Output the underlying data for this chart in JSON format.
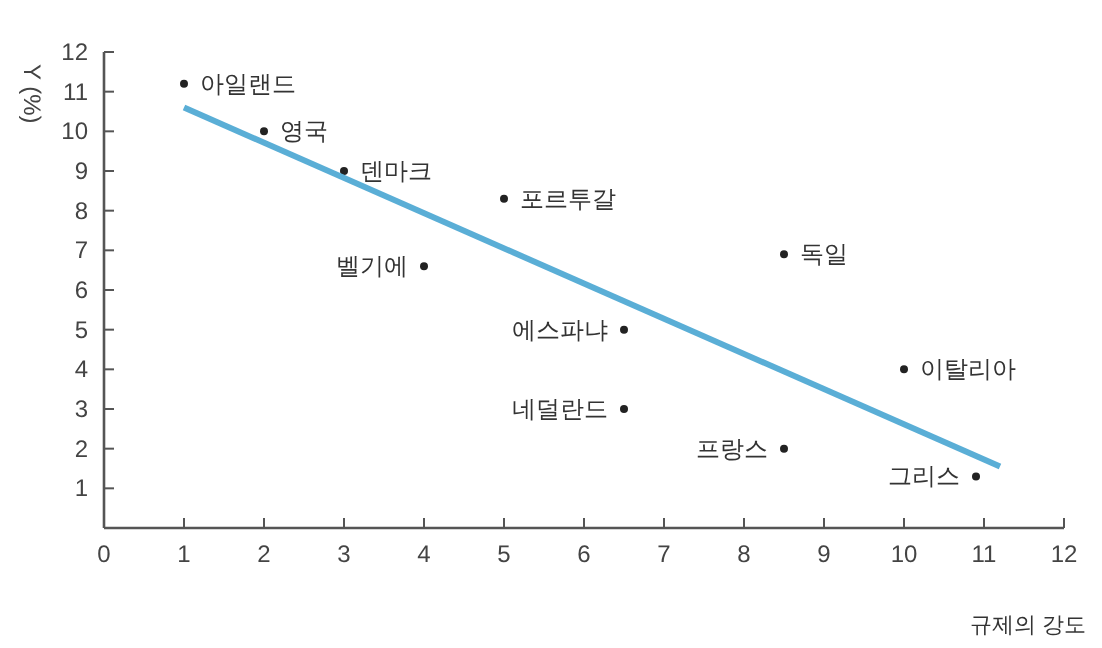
{
  "chart_data": {
    "type": "scatter",
    "xlabel": "규제의 강도",
    "ylabel": "Y (%)",
    "xlim": [
      0,
      12
    ],
    "ylim": [
      0,
      12
    ],
    "xticks": [
      0,
      1,
      2,
      3,
      4,
      5,
      6,
      7,
      8,
      9,
      10,
      11,
      12
    ],
    "yticks": [
      1,
      2,
      3,
      4,
      5,
      6,
      7,
      8,
      9,
      10,
      11,
      12
    ],
    "grid": false,
    "series": [
      {
        "marker": "circle",
        "color": "#222222",
        "x": [
          1,
          2,
          3,
          5,
          4,
          6.5,
          6.5,
          8.5,
          10,
          8.5,
          10.9
        ],
        "values": [
          11.2,
          10,
          9,
          8.3,
          6.6,
          5,
          3,
          6.9,
          4,
          2,
          1.3
        ]
      },
      {
        "type": "line",
        "color": "#5aaed6",
        "x": [
          1,
          11.2
        ],
        "values": [
          10.6,
          1.55
        ]
      }
    ],
    "annotations": [
      {
        "text": "아일랜드",
        "x": 1,
        "y": 11.2
      },
      {
        "text": "영국",
        "x": 2,
        "y": 10
      },
      {
        "text": "덴마크",
        "x": 3,
        "y": 9
      },
      {
        "text": "포르투갈",
        "x": 5,
        "y": 8.3
      },
      {
        "text": "벨기에",
        "x": 4,
        "y": 6.6
      },
      {
        "text": "에스파냐",
        "x": 6.5,
        "y": 5
      },
      {
        "text": "네덜란드",
        "x": 6.5,
        "y": 3
      },
      {
        "text": "독일",
        "x": 8.5,
        "y": 6.9
      },
      {
        "text": "이탈리아",
        "x": 10,
        "y": 4
      },
      {
        "text": "프랑스",
        "x": 8.5,
        "y": 2
      },
      {
        "text": "그리스",
        "x": 10.9,
        "y": 1.3
      }
    ]
  }
}
